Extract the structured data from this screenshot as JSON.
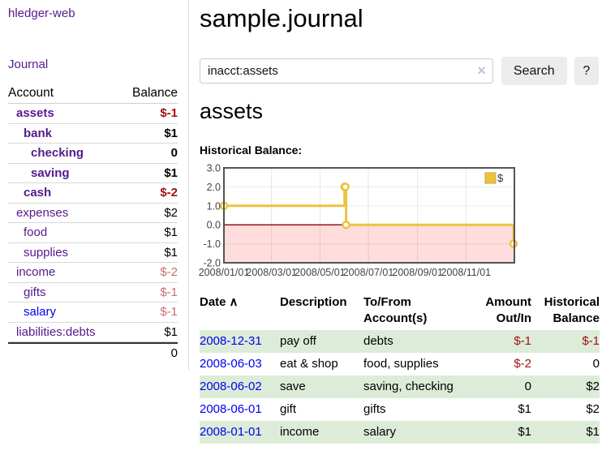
{
  "app": {
    "brand": "hledger-web",
    "nav_journal": "Journal"
  },
  "sidebar": {
    "headers": {
      "account": "Account",
      "balance": "Balance"
    },
    "rows": [
      {
        "account": "assets",
        "balance": "$-1",
        "depth": 0,
        "bold": true,
        "bal_class": "neg",
        "link": "purple"
      },
      {
        "account": "bank",
        "balance": "$1",
        "depth": 1,
        "bold": true,
        "bal_class": "",
        "link": "purple"
      },
      {
        "account": "checking",
        "balance": "0",
        "depth": 2,
        "bold": true,
        "bal_class": "",
        "link": "purple"
      },
      {
        "account": "saving",
        "balance": "$1",
        "depth": 2,
        "bold": true,
        "bal_class": "",
        "link": "purple"
      },
      {
        "account": "cash",
        "balance": "$-2",
        "depth": 1,
        "bold": true,
        "bal_class": "neg",
        "link": "purple"
      },
      {
        "account": "expenses",
        "balance": "$2",
        "depth": 0,
        "bold": false,
        "bal_class": "",
        "link": "purple"
      },
      {
        "account": "food",
        "balance": "$1",
        "depth": 1,
        "bold": false,
        "bal_class": "",
        "link": "purple"
      },
      {
        "account": "supplies",
        "balance": "$1",
        "depth": 1,
        "bold": false,
        "bal_class": "",
        "link": "purple"
      },
      {
        "account": "income",
        "balance": "$-2",
        "depth": 0,
        "bold": false,
        "bal_class": "negsoft",
        "link": "purple"
      },
      {
        "account": "gifts",
        "balance": "$-1",
        "depth": 1,
        "bold": false,
        "bal_class": "negsoft",
        "link": "purple"
      },
      {
        "account": "salary",
        "balance": "$-1",
        "depth": 1,
        "bold": false,
        "bal_class": "negsoft",
        "link": "blue"
      },
      {
        "account": "liabilities:debts",
        "balance": "$1",
        "depth": 0,
        "bold": false,
        "bal_class": "",
        "link": "purple"
      }
    ],
    "total": "0"
  },
  "header": {
    "title": "sample.journal"
  },
  "search": {
    "value": "inacct:assets",
    "clear_icon": "×",
    "button_label": "Search",
    "help_label": "?"
  },
  "account_page": {
    "title": "assets",
    "chart_label": "Historical Balance:"
  },
  "chart_data": {
    "type": "line",
    "step": true,
    "title": "Historical Balance",
    "legend_position": "top-right",
    "grid": true,
    "x_min": "2008-01-01",
    "x_max": "2009-01-01",
    "ylim": [
      -2,
      3
    ],
    "y_ticks": [
      3.0,
      2.0,
      1.0,
      0.0,
      -1.0,
      -2.0
    ],
    "x_ticks": [
      {
        "date": "2008-01-01",
        "label": "2008/01/01"
      },
      {
        "date": "2008-03-01",
        "label": "2008/03/01"
      },
      {
        "date": "2008-05-01",
        "label": "2008/05/01"
      },
      {
        "date": "2008-07-01",
        "label": "2008/07/01"
      },
      {
        "date": "2008-09-01",
        "label": "2008/09/01"
      },
      {
        "date": "2008-11-01",
        "label": "2008/11/01"
      }
    ],
    "series": [
      {
        "name": "$",
        "color": "#edc240",
        "points": [
          {
            "date": "2008-01-01",
            "value": 1
          },
          {
            "date": "2008-06-01",
            "value": 2
          },
          {
            "date": "2008-06-02",
            "value": 2
          },
          {
            "date": "2008-06-03",
            "value": 0
          },
          {
            "date": "2008-12-31",
            "value": -1
          }
        ]
      }
    ],
    "negative_region_color": "#ffdddd",
    "zero_line_color": "#8b0000",
    "border_color": "#545454",
    "tick_label_color": "#444444"
  },
  "register": {
    "headers": {
      "date": "Date",
      "sort_icon": "∧",
      "description": "Description",
      "accounts": "To/From Account(s)",
      "amount": "Amount Out/In",
      "balance": "Historical Balance"
    },
    "rows": [
      {
        "date": "2008-12-31",
        "description": "pay off",
        "accounts": "debts",
        "amount": "$-1",
        "balance": "$-1",
        "amount_neg": true,
        "balance_neg": true
      },
      {
        "date": "2008-06-03",
        "description": "eat & shop",
        "accounts": "food, supplies",
        "amount": "$-2",
        "balance": "0",
        "amount_neg": true,
        "balance_neg": false
      },
      {
        "date": "2008-06-02",
        "description": "save",
        "accounts": "saving, checking",
        "amount": "0",
        "balance": "$2",
        "amount_neg": false,
        "balance_neg": false
      },
      {
        "date": "2008-06-01",
        "description": "gift",
        "accounts": "gifts",
        "amount": "$1",
        "balance": "$2",
        "amount_neg": false,
        "balance_neg": false
      },
      {
        "date": "2008-01-01",
        "description": "income",
        "accounts": "salary",
        "amount": "$1",
        "balance": "$1",
        "amount_neg": false,
        "balance_neg": false
      }
    ]
  },
  "colors": {
    "link_purple": "#551a8b",
    "link_blue": "#0000ee",
    "negative_strong": "#9c1212",
    "negative_soft": "#c96f6f",
    "row_stripe_green": "#dcecd8",
    "series_gold": "#edc240"
  }
}
